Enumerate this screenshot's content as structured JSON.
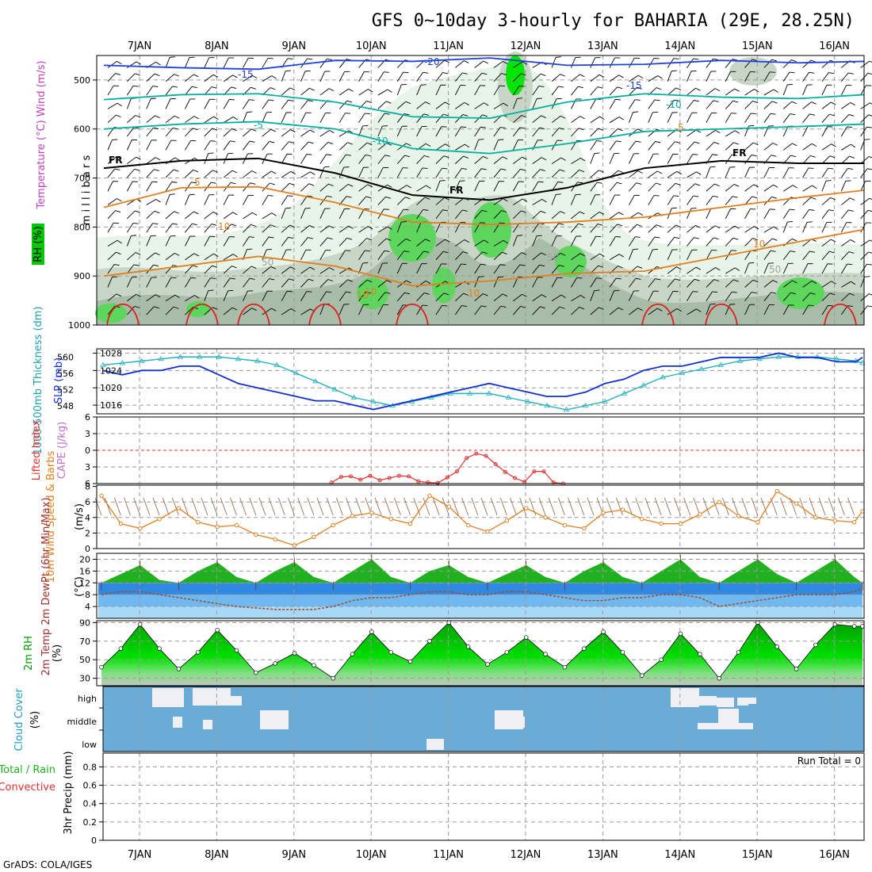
{
  "title": "GFS 0~10day 3-hourly for BAHARIA (29E, 28.25N)",
  "credit": "GrADS: COLA/IGES",
  "dates": [
    "7JAN",
    "8JAN",
    "9JAN",
    "10JAN",
    "11JAN",
    "12JAN",
    "13JAN",
    "14JAN",
    "15JAN",
    "16JAN"
  ],
  "colors": {
    "rh_light": "#e8f4e8",
    "rh_mid": "#c8d6c8",
    "rh_dark": "#a8bca8",
    "rh_green": "#5cd65c",
    "rh_bright": "#00e600",
    "temp_warm": "#e08020",
    "temp_hot": "#e02020",
    "temp_cold": "#00b0a0",
    "temp_vcold": "#2040e0",
    "wind": "#000000",
    "slp": "#1030d0",
    "thick": "#20b0c0",
    "li": "#e03030",
    "wind10": "#e08020",
    "tmax": "#20b020",
    "dew": "#a05030",
    "rh2": "#00cc00",
    "cloud": "#6aacd6",
    "cloud_patch": "#f0f0f4"
  },
  "chart_data": [
    {
      "type": "heatmap",
      "name_axis": "Temperature (°C) Wind (m/s)",
      "ylabel": "m i l l i b a r s",
      "legend_label": "RH (%)",
      "y_ticks": [
        500,
        600,
        700,
        800,
        900,
        1000
      ],
      "ylim": [
        450,
        1000
      ],
      "contour_labels": [
        "-20",
        "-15",
        "-15",
        "-10",
        "-10",
        "-5",
        "5",
        "FR",
        "FR",
        "FR",
        "5",
        "10",
        "10",
        "10",
        "10",
        "50",
        "50",
        "50",
        "10"
      ],
      "isotherms": [
        {
          "label": "-15",
          "points": [
            [
              0,
              470
            ],
            [
              24,
              475
            ],
            [
              48,
              478
            ],
            [
              72,
              460
            ],
            [
              96,
              462
            ],
            [
              120,
              455
            ],
            [
              144,
              470
            ],
            [
              168,
              468
            ],
            [
              192,
              460
            ],
            [
              216,
              465
            ],
            [
              240,
              462
            ]
          ]
        },
        {
          "label": "-10",
          "points": [
            [
              0,
              540
            ],
            [
              24,
              530
            ],
            [
              48,
              528
            ],
            [
              72,
              545
            ],
            [
              96,
              575
            ],
            [
              120,
              578
            ],
            [
              144,
              545
            ],
            [
              168,
              528
            ],
            [
              192,
              535
            ],
            [
              216,
              538
            ],
            [
              240,
              530
            ]
          ]
        },
        {
          "label": "-5",
          "points": [
            [
              0,
              600
            ],
            [
              24,
              590
            ],
            [
              48,
              585
            ],
            [
              72,
              600
            ],
            [
              96,
              640
            ],
            [
              120,
              650
            ],
            [
              144,
              630
            ],
            [
              168,
              605
            ],
            [
              192,
              600
            ],
            [
              216,
              595
            ],
            [
              240,
              590
            ]
          ]
        },
        {
          "label": "FR",
          "points": [
            [
              0,
              680
            ],
            [
              24,
              665
            ],
            [
              48,
              660
            ],
            [
              72,
              690
            ],
            [
              96,
              735
            ],
            [
              120,
              745
            ],
            [
              144,
              720
            ],
            [
              168,
              680
            ],
            [
              192,
              665
            ],
            [
              216,
              670
            ],
            [
              240,
              670
            ]
          ]
        },
        {
          "label": "5",
          "points": [
            [
              0,
              760
            ],
            [
              24,
              720
            ],
            [
              48,
              718
            ],
            [
              72,
              750
            ],
            [
              96,
              790
            ],
            [
              120,
              795
            ],
            [
              144,
              790
            ],
            [
              168,
              780
            ],
            [
              192,
              760
            ],
            [
              216,
              740
            ],
            [
              240,
              725
            ]
          ]
        },
        {
          "label": "10",
          "points": [
            [
              0,
              900
            ],
            [
              24,
              880
            ],
            [
              48,
              860
            ],
            [
              72,
              880
            ],
            [
              96,
              920
            ],
            [
              120,
              910
            ],
            [
              144,
              895
            ],
            [
              168,
              890
            ],
            [
              192,
              860
            ],
            [
              216,
              830
            ],
            [
              240,
              805
            ]
          ]
        }
      ]
    },
    {
      "type": "line",
      "label_slp": "SLP (mb)",
      "label_thick": "1000-500mb Thickness (dm)",
      "thick_ticks": [
        548,
        552,
        556,
        560
      ],
      "slp_ticks": [
        1016,
        1020,
        1024,
        1028
      ],
      "x": [
        0,
        6,
        12,
        18,
        24,
        30,
        36,
        42,
        48,
        54,
        60,
        66,
        72,
        78,
        84,
        90,
        96,
        102,
        108,
        114,
        120,
        126,
        132,
        138,
        144,
        150,
        156,
        162,
        168,
        174,
        180,
        186,
        192,
        198,
        204,
        210,
        216,
        222,
        228,
        234,
        240
      ],
      "slp": [
        1024,
        1023,
        1024,
        1024,
        1025,
        1025,
        1023,
        1021,
        1020,
        1019,
        1018,
        1017,
        1017,
        1016,
        1015,
        1016,
        1017,
        1018,
        1019,
        1020,
        1021,
        1020,
        1019,
        1018,
        1018,
        1019,
        1021,
        1022,
        1024,
        1025,
        1025,
        1026,
        1027,
        1027,
        1027,
        1028,
        1027,
        1027,
        1026,
        1026,
        1027
      ],
      "thickness": [
        558,
        558.5,
        559,
        559.5,
        560,
        560,
        560,
        559.5,
        559,
        558,
        556,
        554,
        552,
        550,
        549,
        548,
        549,
        550,
        551,
        551,
        551,
        550,
        549,
        548,
        547,
        548,
        549,
        551,
        553,
        555,
        556,
        557,
        558,
        559,
        559.5,
        560,
        560,
        560,
        559.5,
        559,
        558.5
      ]
    },
    {
      "type": "line",
      "label_li": "Lifted Index",
      "label_cape": "CAPE (J/kg)",
      "y_ticks": [
        -6,
        -3,
        0,
        3,
        6
      ],
      "li_x": [
        72,
        75,
        78,
        81,
        84,
        87,
        90,
        93,
        96,
        99,
        102,
        105,
        108,
        111,
        114,
        117,
        120,
        123,
        126,
        129,
        132,
        135,
        138,
        141,
        144
      ],
      "li_values": [
        5.8,
        4.8,
        4.7,
        5.3,
        4.6,
        5.4,
        5.0,
        4.6,
        4.7,
        5.6,
        5.8,
        5.9,
        4.9,
        3.8,
        1.4,
        0.6,
        1.0,
        2.5,
        3.9,
        5.0,
        5.7,
        3.8,
        3.8,
        5.8,
        6.0
      ]
    },
    {
      "type": "line",
      "label": "10m Wind Speed & Barbs",
      "unit": "(m/s)",
      "y_ticks": [
        0,
        2,
        4,
        6,
        8
      ],
      "x": [
        0,
        6,
        12,
        18,
        24,
        30,
        36,
        42,
        48,
        54,
        60,
        66,
        72,
        78,
        84,
        90,
        96,
        102,
        108,
        114,
        120,
        126,
        132,
        138,
        144,
        150,
        156,
        162,
        168,
        174,
        180,
        186,
        192,
        198,
        204,
        210,
        216,
        222,
        228,
        234,
        240
      ],
      "values": [
        6.8,
        3.2,
        2.6,
        3.8,
        5.2,
        3.4,
        2.8,
        3.0,
        1.8,
        1.2,
        0.4,
        1.5,
        3.0,
        4.2,
        4.6,
        3.8,
        3.2,
        6.8,
        5.4,
        3.0,
        2.2,
        3.6,
        5.2,
        4.0,
        3.0,
        2.6,
        4.6,
        5.0,
        3.8,
        3.2,
        3.2,
        4.4,
        6.0,
        4.2,
        3.4,
        7.4,
        5.8,
        4.0,
        3.6,
        3.4,
        4.8
      ]
    },
    {
      "type": "area",
      "label": "2m Temp 2m DewPt (6hr Min/Max)",
      "unit": "(°C)",
      "y_ticks": [
        4,
        8,
        12,
        16,
        20
      ],
      "x": [
        0,
        6,
        12,
        18,
        24,
        30,
        36,
        42,
        48,
        54,
        60,
        66,
        72,
        78,
        84,
        90,
        96,
        102,
        108,
        114,
        120,
        126,
        132,
        138,
        144,
        150,
        156,
        162,
        168,
        174,
        180,
        186,
        192,
        198,
        204,
        210,
        216,
        222,
        228,
        234,
        240
      ],
      "temp": [
        11,
        15,
        18,
        13,
        11,
        16,
        19,
        14,
        11,
        16,
        19,
        14,
        11,
        16,
        20,
        14,
        11,
        16,
        18,
        14,
        11,
        15,
        18,
        14,
        11,
        16,
        19,
        14,
        11,
        16,
        20,
        14,
        11,
        16,
        20,
        15,
        11,
        16,
        20,
        14,
        11
      ],
      "dewpt": [
        8,
        9,
        9,
        8,
        7,
        6,
        5,
        4,
        3.5,
        3,
        3,
        3,
        4,
        6,
        7,
        7,
        8,
        9,
        9,
        8,
        8,
        9,
        9,
        8,
        7,
        6,
        6,
        7,
        7,
        8,
        8,
        7,
        4,
        5,
        6,
        7,
        8,
        8,
        8,
        9,
        10
      ]
    },
    {
      "type": "area",
      "label": "2m RH",
      "unit": "(%)",
      "y_ticks": [
        30,
        50,
        70,
        90
      ],
      "x": [
        0,
        6,
        12,
        18,
        24,
        30,
        36,
        42,
        48,
        54,
        60,
        66,
        72,
        78,
        84,
        90,
        96,
        102,
        108,
        114,
        120,
        126,
        132,
        138,
        144,
        150,
        156,
        162,
        168,
        174,
        180,
        186,
        192,
        198,
        204,
        210,
        216,
        222,
        228,
        234,
        240
      ],
      "values": [
        42,
        62,
        88,
        62,
        40,
        58,
        82,
        60,
        36,
        46,
        57,
        44,
        30,
        56,
        80,
        58,
        48,
        70,
        90,
        64,
        45,
        58,
        74,
        56,
        42,
        62,
        80,
        58,
        33,
        50,
        78,
        56,
        30,
        58,
        90,
        64,
        40,
        66,
        88,
        86,
        86
      ]
    },
    {
      "type": "table",
      "label": "Cloud Cover",
      "unit": "(%)",
      "levels": [
        "high",
        "middle",
        "low"
      ]
    },
    {
      "type": "bar",
      "label_total": "Total / Rain",
      "label_conv": "Convective",
      "ylabel": "3hr Precip (mm)",
      "y_ticks": [
        0,
        0.2,
        0.4,
        0.6,
        0.8
      ],
      "run_total": "Run Total = 0",
      "values": []
    }
  ]
}
